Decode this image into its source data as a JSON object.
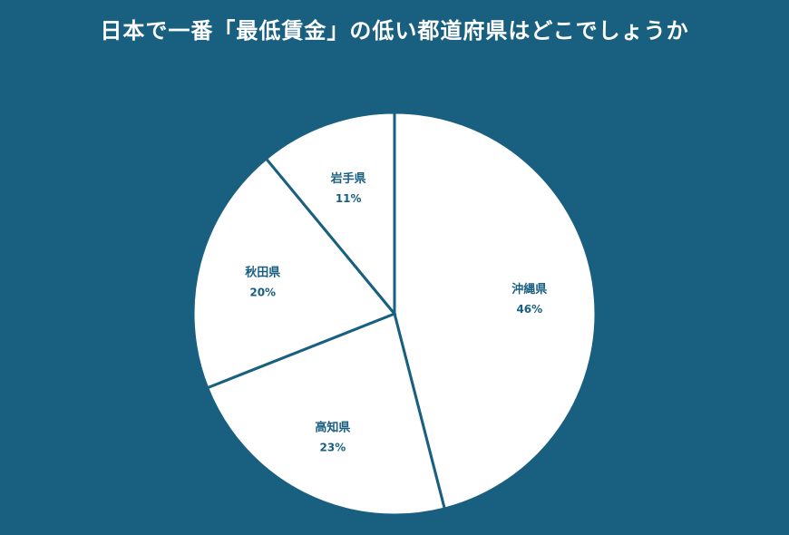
{
  "title": "日本で一番「最低賃金」の低い都道府県はどこでしょうか",
  "colors": {
    "background": "#185f80",
    "slice_fill": "#ffffff",
    "label_color": "#185f80",
    "title_color": "#ffffff"
  },
  "chart_data": {
    "type": "pie",
    "title": "日本で一番「最低賃金」の低い都道府県はどこでしょうか",
    "slices": [
      {
        "label": "沖縄県",
        "value": 46,
        "value_text": "46%"
      },
      {
        "label": "高知県",
        "value": 23,
        "value_text": "23%"
      },
      {
        "label": "秋田県",
        "value": 20,
        "value_text": "20%"
      },
      {
        "label": "岩手県",
        "value": 11,
        "value_text": "11%"
      }
    ],
    "start": "12 o'clock",
    "direction": "clockwise",
    "legend": "none"
  }
}
